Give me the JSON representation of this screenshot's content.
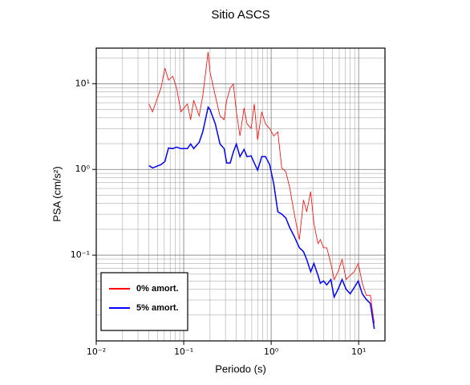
{
  "chart_data": {
    "type": "line",
    "title": "Sitio ASCS",
    "xlabel": "Periodo (s)",
    "ylabel": "PSA (cm/s²)",
    "x": [
      0.04,
      0.044,
      0.055,
      0.061,
      0.067,
      0.075,
      0.083,
      0.093,
      0.11,
      0.12,
      0.13,
      0.15,
      0.165,
      0.19,
      0.2,
      0.23,
      0.26,
      0.29,
      0.31,
      0.34,
      0.37,
      0.4,
      0.44,
      0.49,
      0.53,
      0.59,
      0.64,
      0.7,
      0.78,
      0.86,
      0.96,
      1.07,
      1.19,
      1.32,
      1.47,
      1.63,
      1.85,
      2.1,
      2.34,
      2.55,
      2.83,
      3.08,
      3.43,
      3.65,
      3.97,
      4.32,
      4.81,
      5.24,
      5.82,
      6.47,
      7.2,
      8.0,
      8.9,
      9.9,
      11,
      12.2,
      13.6,
      15.1
    ],
    "series": [
      {
        "name": "0% amort.",
        "color": "#ff0000",
        "width": 0.8,
        "values": [
          5.8,
          4.7,
          8.9,
          15.2,
          11,
          12.2,
          8.9,
          4.7,
          5.8,
          3.8,
          6.4,
          4.2,
          7.2,
          23.3,
          13.6,
          7.2,
          4.2,
          3.8,
          6.4,
          8.9,
          9.9,
          4.7,
          2.46,
          5.2,
          3.4,
          3.0,
          5.8,
          2.21,
          4.7,
          3.4,
          3.0,
          2.46,
          2.74,
          1.04,
          0.94,
          0.61,
          0.29,
          0.152,
          0.44,
          0.321,
          0.55,
          0.233,
          0.136,
          0.152,
          0.122,
          0.122,
          0.08,
          0.052,
          0.064,
          0.089,
          0.052,
          0.058,
          0.064,
          0.08,
          0.047,
          0.034,
          0.034,
          0.016
        ]
      },
      {
        "name": "5% amort.",
        "color": "#0000ff",
        "width": 1.5,
        "values": [
          1.11,
          1.04,
          1.14,
          1.24,
          1.78,
          1.75,
          1.82,
          1.75,
          1.75,
          1.98,
          1.75,
          2.07,
          2.74,
          5.32,
          4.99,
          3.39,
          1.98,
          1.75,
          1.19,
          1.19,
          1.6,
          1.98,
          1.41,
          1.71,
          1.41,
          1.44,
          1.19,
          0.98,
          1.41,
          1.41,
          1.14,
          0.68,
          0.321,
          0.301,
          0.271,
          0.209,
          0.162,
          0.122,
          0.11,
          0.089,
          0.064,
          0.08,
          0.058,
          0.047,
          0.05,
          0.045,
          0.052,
          0.0325,
          0.04,
          0.052,
          0.04,
          0.0354,
          0.042,
          0.05,
          0.0354,
          0.0305,
          0.0274,
          0.0138
        ]
      }
    ],
    "xscale": "log",
    "yscale": "log",
    "xlim": [
      0.01,
      20
    ],
    "ylim": [
      0.01,
      26
    ],
    "xticks": [
      {
        "value": 0.01,
        "label": "10⁻²"
      },
      {
        "value": 0.1,
        "label": "10⁻¹"
      },
      {
        "value": 1,
        "label": "10⁰"
      },
      {
        "value": 10,
        "label": "10¹"
      }
    ],
    "yticks": [
      {
        "value": 0.1,
        "label": "10⁻¹"
      },
      {
        "value": 1,
        "label": "10⁰"
      },
      {
        "value": 10,
        "label": "10¹"
      }
    ],
    "grid": true,
    "minor_grid": true,
    "legend": "lower left"
  }
}
